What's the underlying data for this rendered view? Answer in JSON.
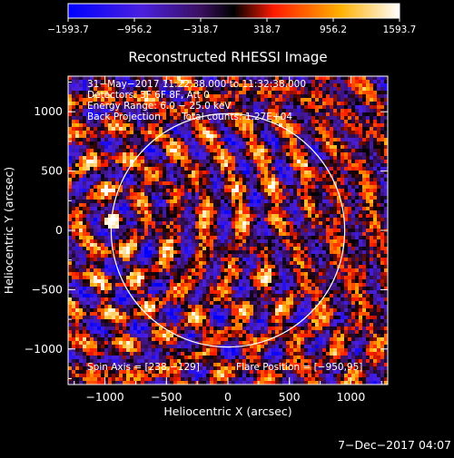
{
  "chart_data": {
    "type": "heatmap",
    "title": "Reconstructed RHESSI Image",
    "xlabel": "Heliocentric X (arcsec)",
    "ylabel": "Heliocentric Y (arcsec)",
    "xlim": [
      -1300,
      1300
    ],
    "ylim": [
      -1300,
      1300
    ],
    "x_ticks": [
      -1000,
      -500,
      0,
      500,
      1000
    ],
    "y_ticks": [
      -1000,
      -500,
      0,
      500,
      1000
    ],
    "x_tick_labels": [
      "−1000",
      "−500",
      "0",
      "500",
      "1000"
    ],
    "y_tick_labels": [
      "−1000",
      "−500",
      "0",
      "500",
      "1000"
    ],
    "colorbar": {
      "range": [
        -1593.7,
        1593.7
      ],
      "tick_labels": [
        "−1593.7",
        "−956.2",
        "−318.7",
        "318.7",
        "956.2",
        "1593.7"
      ],
      "colors": [
        "#0000ff",
        "#6a2cc0",
        "#000000",
        "#ff1a00",
        "#ffb000",
        "#ffffff"
      ]
    },
    "annotations": {
      "time_range": "31−May−2017 11:22:38.000 to 11:32:38.000",
      "detectors": "Detectors: 3F 6F 8F, Att 0",
      "energy": "Energy Range: 6.0 − 25.0 keV",
      "method": "Back Projection",
      "counts": "Total counts: 1.27E+04",
      "spin_axis": "Spin Axis = [238,−129]",
      "flare_position": "Flare Position = [−950,95]"
    },
    "solar_limb": {
      "center": [
        0,
        0
      ],
      "radius": 950
    },
    "flare_marker": [
      -950,
      95
    ],
    "grid": false
  },
  "footer": {
    "date": "7−Dec−2017 04:07"
  }
}
